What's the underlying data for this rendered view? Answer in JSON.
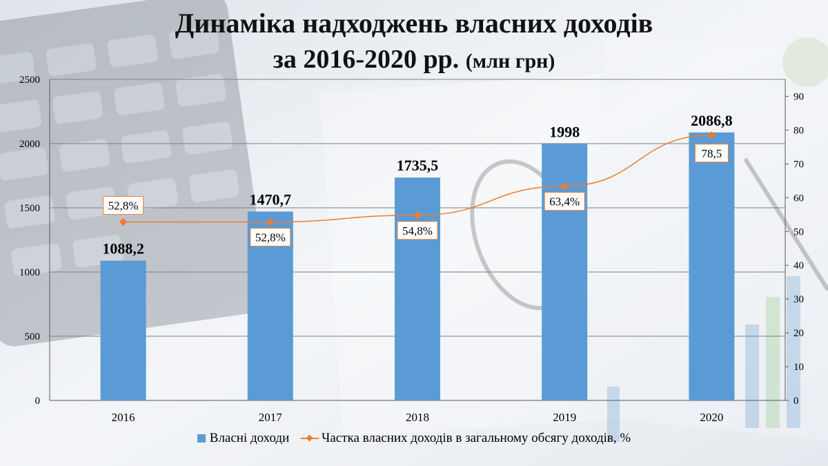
{
  "colors": {
    "bar": "#5b9bd5",
    "line": "#ed7d31",
    "grid": "#7f7f7f"
  },
  "chart_data": {
    "type": "bar",
    "title_line1": "Динаміка надходжень власних доходів",
    "title_line2": "за 2016-2020 рр.",
    "title_unit": "(млн грн)",
    "categories": [
      "2016",
      "2017",
      "2018",
      "2019",
      "2020"
    ],
    "series": [
      {
        "name": "Власні доходи",
        "type": "bar",
        "axis": "left",
        "values": [
          1088.2,
          1470.7,
          1735.5,
          1998,
          2086.8
        ],
        "labels": [
          "1088,2",
          "1470,7",
          "1735,5",
          "1998",
          "2086,8"
        ]
      },
      {
        "name": "Частка власних доходів в загальному обсягу доходів, %",
        "type": "line",
        "axis": "right",
        "values": [
          52.8,
          52.8,
          54.8,
          63.4,
          78.5
        ],
        "labels": [
          "52,8%",
          "52,8%",
          "54,8%",
          "63,4%",
          "78,5"
        ]
      }
    ],
    "y_left": {
      "min": 0,
      "max": 2500,
      "ticks": [
        "0",
        "500",
        "1000",
        "1500",
        "2000",
        "2500"
      ]
    },
    "y_right": {
      "min": 0,
      "max": 95,
      "ticks": [
        "0",
        "10",
        "20",
        "30",
        "40",
        "50",
        "60",
        "70",
        "80",
        "90"
      ]
    },
    "grid": true,
    "legend_position": "bottom"
  }
}
